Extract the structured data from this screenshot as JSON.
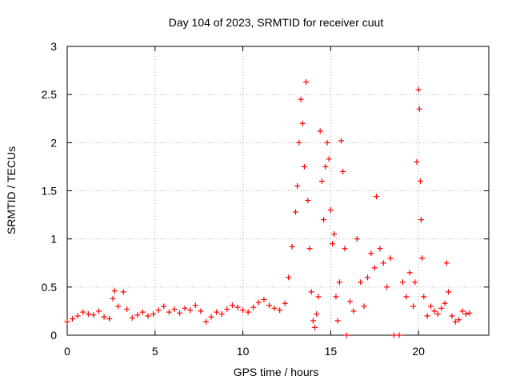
{
  "chart_data": {
    "type": "scatter",
    "title": "Day 104 of 2023, SRMTID for receiver cuut",
    "xlabel": "GPS time / hours",
    "ylabel": "SRMTID / TECUs",
    "xlim": [
      0,
      24
    ],
    "ylim": [
      0,
      3
    ],
    "xticks": [
      0,
      5,
      10,
      15,
      20
    ],
    "xtick_labels": [
      "0",
      "5",
      "10",
      "15",
      "20"
    ],
    "yticks": [
      0,
      0.5,
      1,
      1.5,
      2,
      2.5,
      3
    ],
    "ytick_labels": [
      "0",
      "0.5",
      "1",
      "1.5",
      "2",
      "2.5",
      "3"
    ],
    "grid": true,
    "series": [
      {
        "name": "SRMTID",
        "marker": "plus",
        "color": "#ff0000",
        "points": [
          [
            0.0,
            0.14
          ],
          [
            0.3,
            0.17
          ],
          [
            0.6,
            0.2
          ],
          [
            0.9,
            0.24
          ],
          [
            1.2,
            0.22
          ],
          [
            1.5,
            0.21
          ],
          [
            1.8,
            0.25
          ],
          [
            2.1,
            0.19
          ],
          [
            2.4,
            0.17
          ],
          [
            2.6,
            0.38
          ],
          [
            2.7,
            0.46
          ],
          [
            2.9,
            0.3
          ],
          [
            3.2,
            0.45
          ],
          [
            3.4,
            0.27
          ],
          [
            3.7,
            0.18
          ],
          [
            4.0,
            0.21
          ],
          [
            4.3,
            0.24
          ],
          [
            4.6,
            0.2
          ],
          [
            4.9,
            0.22
          ],
          [
            5.2,
            0.26
          ],
          [
            5.5,
            0.3
          ],
          [
            5.8,
            0.24
          ],
          [
            6.1,
            0.27
          ],
          [
            6.4,
            0.23
          ],
          [
            6.7,
            0.28
          ],
          [
            7.0,
            0.26
          ],
          [
            7.3,
            0.31
          ],
          [
            7.6,
            0.25
          ],
          [
            7.9,
            0.14
          ],
          [
            8.2,
            0.19
          ],
          [
            8.5,
            0.24
          ],
          [
            8.8,
            0.22
          ],
          [
            9.1,
            0.27
          ],
          [
            9.4,
            0.31
          ],
          [
            9.7,
            0.29
          ],
          [
            10.0,
            0.26
          ],
          [
            10.3,
            0.24
          ],
          [
            10.6,
            0.29
          ],
          [
            10.9,
            0.34
          ],
          [
            11.2,
            0.37
          ],
          [
            11.5,
            0.31
          ],
          [
            11.8,
            0.28
          ],
          [
            12.1,
            0.26
          ],
          [
            12.4,
            0.33
          ],
          [
            12.6,
            0.6
          ],
          [
            12.8,
            0.92
          ],
          [
            13.0,
            1.28
          ],
          [
            13.1,
            1.55
          ],
          [
            13.2,
            2.0
          ],
          [
            13.3,
            2.45
          ],
          [
            13.4,
            2.2
          ],
          [
            13.5,
            1.75
          ],
          [
            13.6,
            2.63
          ],
          [
            13.7,
            1.4
          ],
          [
            13.8,
            0.9
          ],
          [
            13.9,
            0.45
          ],
          [
            14.0,
            0.15
          ],
          [
            14.1,
            0.08
          ],
          [
            14.2,
            0.22
          ],
          [
            14.3,
            0.4
          ],
          [
            14.4,
            2.12
          ],
          [
            14.5,
            1.6
          ],
          [
            14.6,
            1.2
          ],
          [
            14.7,
            1.75
          ],
          [
            14.8,
            2.0
          ],
          [
            14.9,
            1.83
          ],
          [
            15.0,
            1.3
          ],
          [
            15.1,
            0.95
          ],
          [
            15.2,
            1.05
          ],
          [
            15.3,
            0.4
          ],
          [
            15.4,
            0.15
          ],
          [
            15.5,
            0.55
          ],
          [
            15.6,
            2.02
          ],
          [
            15.7,
            1.7
          ],
          [
            15.8,
            0.9
          ],
          [
            15.9,
            0.0
          ],
          [
            16.1,
            0.35
          ],
          [
            16.3,
            0.25
          ],
          [
            16.5,
            1.0
          ],
          [
            16.7,
            0.55
          ],
          [
            16.9,
            0.3
          ],
          [
            17.1,
            0.6
          ],
          [
            17.3,
            0.85
          ],
          [
            17.5,
            0.7
          ],
          [
            17.6,
            1.44
          ],
          [
            17.8,
            0.9
          ],
          [
            18.0,
            0.75
          ],
          [
            18.2,
            0.5
          ],
          [
            18.4,
            0.8
          ],
          [
            18.6,
            0.0
          ],
          [
            18.9,
            0.0
          ],
          [
            19.1,
            0.55
          ],
          [
            19.3,
            0.4
          ],
          [
            19.5,
            0.65
          ],
          [
            19.7,
            0.3
          ],
          [
            19.8,
            0.55
          ],
          [
            19.9,
            1.8
          ],
          [
            20.0,
            2.55
          ],
          [
            20.05,
            2.35
          ],
          [
            20.1,
            1.6
          ],
          [
            20.15,
            1.2
          ],
          [
            20.2,
            0.8
          ],
          [
            20.3,
            0.4
          ],
          [
            20.5,
            0.2
          ],
          [
            20.7,
            0.3
          ],
          [
            20.9,
            0.25
          ],
          [
            21.1,
            0.22
          ],
          [
            21.3,
            0.28
          ],
          [
            21.5,
            0.33
          ],
          [
            21.6,
            0.75
          ],
          [
            21.7,
            0.45
          ],
          [
            21.9,
            0.2
          ],
          [
            22.1,
            0.14
          ],
          [
            22.3,
            0.16
          ],
          [
            22.5,
            0.25
          ],
          [
            22.7,
            0.22
          ],
          [
            22.9,
            0.23
          ]
        ]
      }
    ]
  }
}
